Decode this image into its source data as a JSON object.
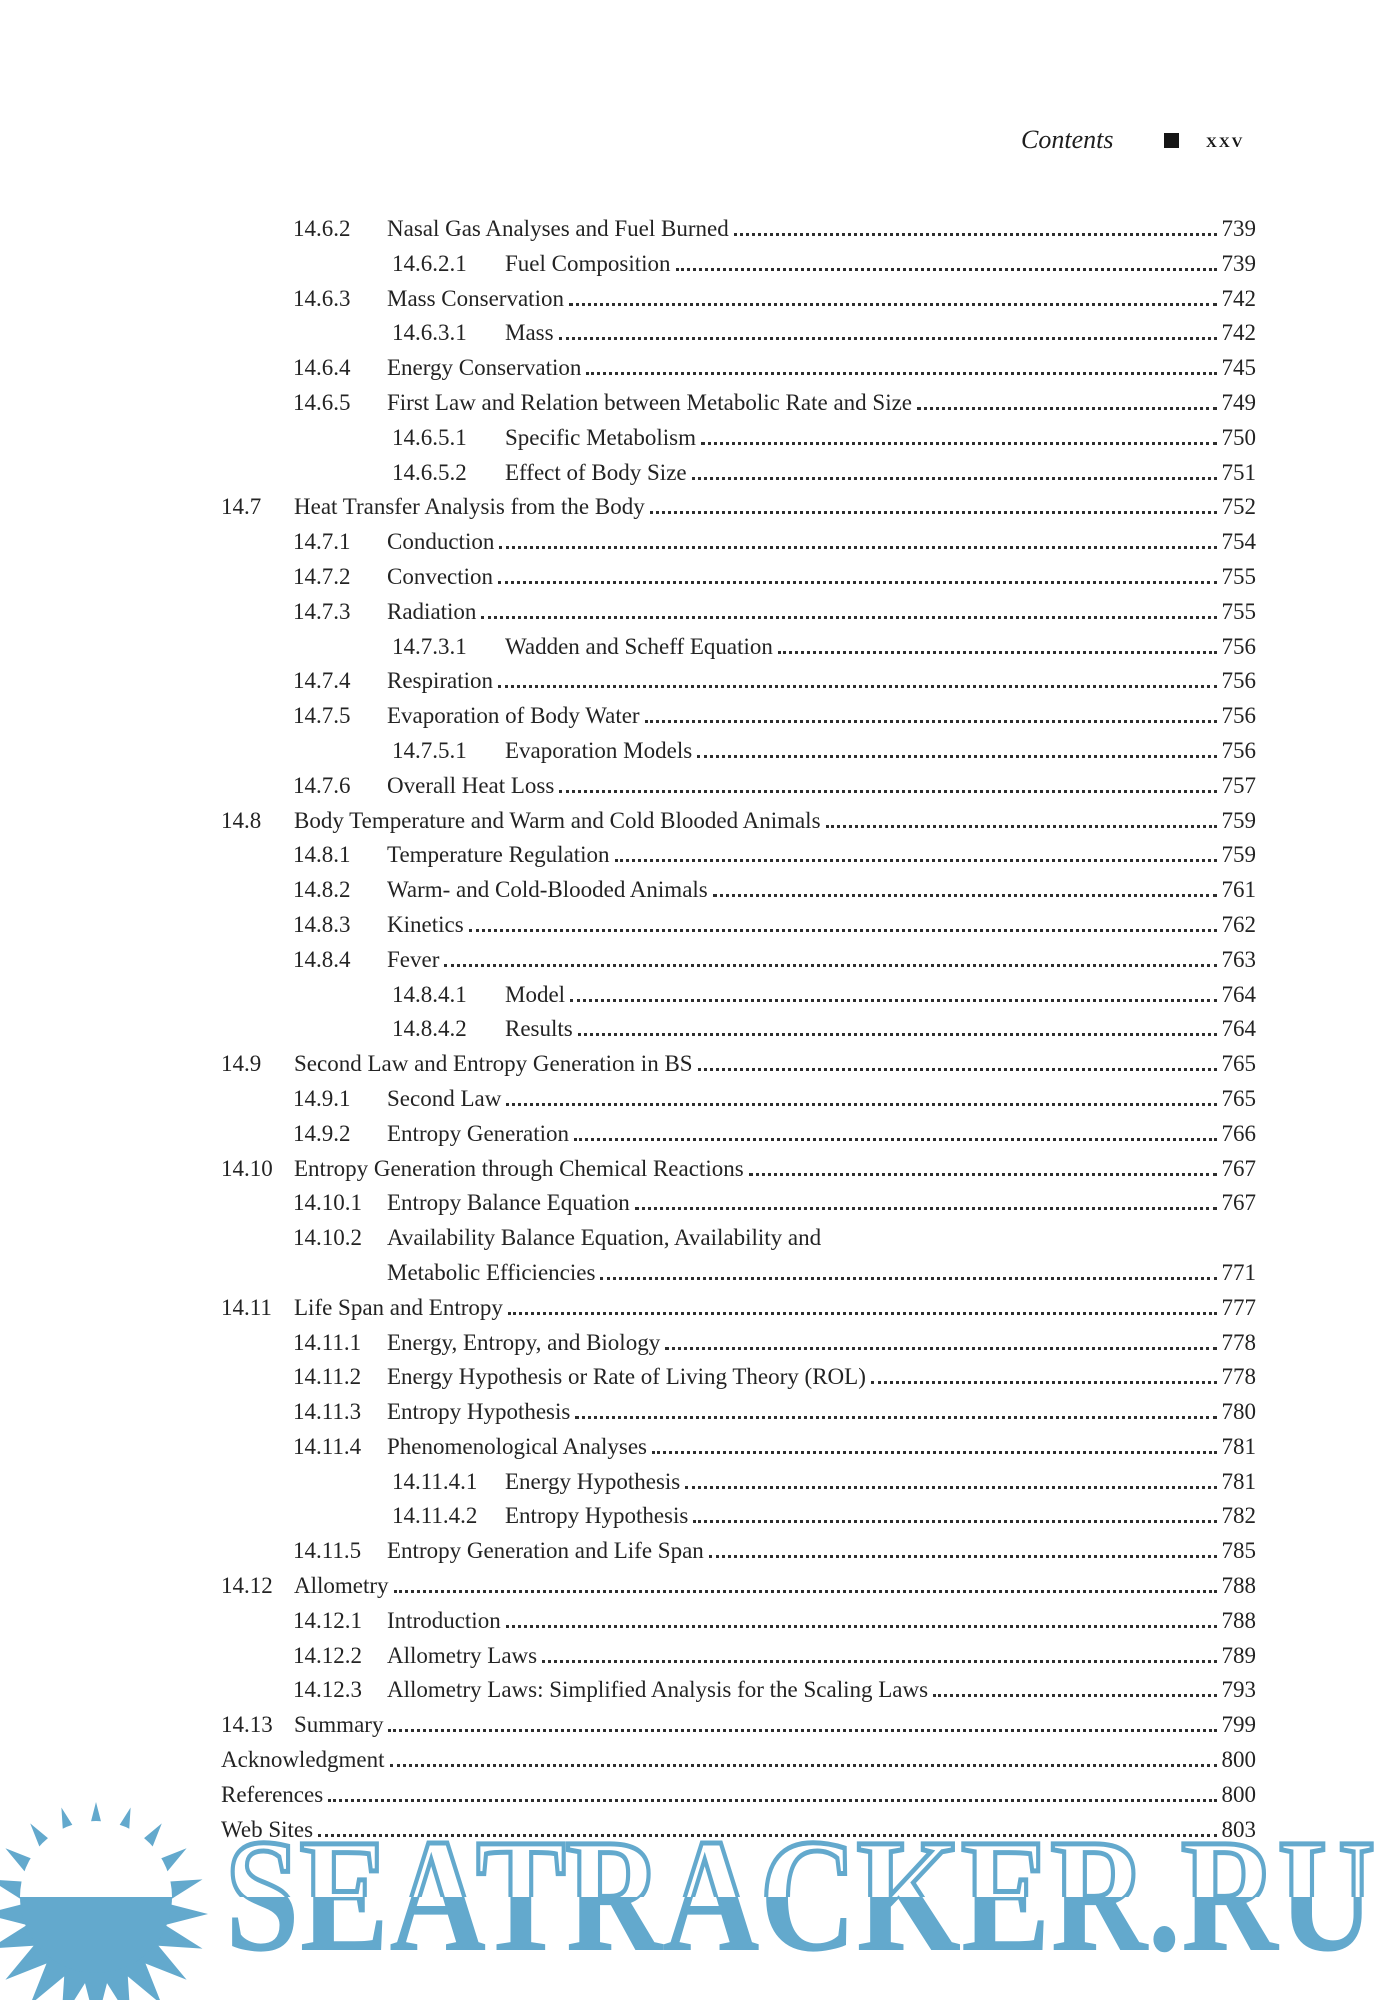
{
  "header": {
    "title": "Contents",
    "separator_icon": "square-bullet",
    "page_label": "xxv"
  },
  "toc": {
    "entries": [
      {
        "level": 2,
        "num": "14.6.2",
        "title": "Nasal Gas Analyses and Fuel Burned",
        "page": "739"
      },
      {
        "level": 3,
        "num": "14.6.2.1",
        "title": "Fuel Composition",
        "page": "739"
      },
      {
        "level": 2,
        "num": "14.6.3",
        "title": "Mass Conservation",
        "page": "742"
      },
      {
        "level": 3,
        "num": "14.6.3.1",
        "title": "Mass",
        "page": "742"
      },
      {
        "level": 2,
        "num": "14.6.4",
        "title": "Energy Conservation",
        "page": "745"
      },
      {
        "level": 2,
        "num": "14.6.5",
        "title": "First Law and Relation between Metabolic Rate and Size",
        "page": "749"
      },
      {
        "level": 3,
        "num": "14.6.5.1",
        "title": "Specific Metabolism",
        "page": "750"
      },
      {
        "level": 3,
        "num": "14.6.5.2",
        "title": "Effect of Body Size",
        "page": "751"
      },
      {
        "level": 1,
        "num": "14.7",
        "title": "Heat Transfer Analysis from the Body",
        "page": "752"
      },
      {
        "level": 2,
        "num": "14.7.1",
        "title": "Conduction",
        "page": "754"
      },
      {
        "level": 2,
        "num": "14.7.2",
        "title": "Convection",
        "page": "755"
      },
      {
        "level": 2,
        "num": "14.7.3",
        "title": "Radiation",
        "page": "755"
      },
      {
        "level": 3,
        "num": "14.7.3.1",
        "title": "Wadden and Scheff Equation",
        "page": "756"
      },
      {
        "level": 2,
        "num": "14.7.4",
        "title": "Respiration",
        "page": "756"
      },
      {
        "level": 2,
        "num": "14.7.5",
        "title": "Evaporation of Body Water",
        "page": "756"
      },
      {
        "level": 3,
        "num": "14.7.5.1",
        "title": "Evaporation Models",
        "page": "756"
      },
      {
        "level": 2,
        "num": "14.7.6",
        "title": "Overall Heat Loss",
        "page": "757"
      },
      {
        "level": 1,
        "num": "14.8",
        "title": "Body Temperature and Warm and Cold Blooded Animals",
        "page": "759"
      },
      {
        "level": 2,
        "num": "14.8.1",
        "title": "Temperature Regulation",
        "page": "759"
      },
      {
        "level": 2,
        "num": "14.8.2",
        "title": "Warm- and Cold-Blooded Animals",
        "page": "761"
      },
      {
        "level": 2,
        "num": "14.8.3",
        "title": "Kinetics",
        "page": "762"
      },
      {
        "level": 2,
        "num": "14.8.4",
        "title": "Fever",
        "page": "763"
      },
      {
        "level": 3,
        "num": "14.8.4.1",
        "title": "Model",
        "page": "764"
      },
      {
        "level": 3,
        "num": "14.8.4.2",
        "title": "Results",
        "page": "764"
      },
      {
        "level": 1,
        "num": "14.9",
        "title": "Second Law and Entropy Generation in BS",
        "page": "765"
      },
      {
        "level": 2,
        "num": "14.9.1",
        "title": "Second Law",
        "page": "765"
      },
      {
        "level": 2,
        "num": "14.9.2",
        "title": "Entropy Generation",
        "page": "766"
      },
      {
        "level": 1,
        "num": "14.10",
        "title": "Entropy Generation through Chemical Reactions",
        "page": "767"
      },
      {
        "level": 2,
        "num": "14.10.1",
        "title": "Entropy Balance Equation",
        "page": "767"
      },
      {
        "level": 2,
        "num": "14.10.2",
        "title": "Availability Balance Equation, Availability and",
        "title2": "Metabolic Efficiencies",
        "page": "771"
      },
      {
        "level": 1,
        "num": "14.11",
        "title": "Life Span and Entropy",
        "page": "777"
      },
      {
        "level": 2,
        "num": "14.11.1",
        "title": "Energy, Entropy, and Biology",
        "page": "778"
      },
      {
        "level": 2,
        "num": "14.11.2",
        "title": "Energy Hypothesis or Rate of Living Theory (ROL)",
        "page": "778"
      },
      {
        "level": 2,
        "num": "14.11.3",
        "title": "Entropy Hypothesis",
        "page": "780"
      },
      {
        "level": 2,
        "num": "14.11.4",
        "title": "Phenomenological Analyses",
        "page": "781"
      },
      {
        "level": 3,
        "num": "14.11.4.1",
        "title": "Energy Hypothesis",
        "page": "781"
      },
      {
        "level": 3,
        "num": "14.11.4.2",
        "title": "Entropy Hypothesis",
        "page": "782"
      },
      {
        "level": 2,
        "num": "14.11.5",
        "title": "Entropy Generation and Life Span",
        "page": "785"
      },
      {
        "level": 1,
        "num": "14.12",
        "title": "Allometry",
        "page": "788"
      },
      {
        "level": 2,
        "num": "14.12.1",
        "title": "Introduction",
        "page": "788"
      },
      {
        "level": 2,
        "num": "14.12.2",
        "title": "Allometry Laws",
        "page": "789"
      },
      {
        "level": 2,
        "num": "14.12.3",
        "title": "Allometry Laws: Simplified Analysis for the Scaling Laws",
        "page": "793"
      },
      {
        "level": 1,
        "num": "14.13",
        "title": "Summary",
        "page": "799"
      },
      {
        "level": 1,
        "num": "",
        "title": "Acknowledgment",
        "page": "800"
      },
      {
        "level": 1,
        "num": "",
        "title": "References",
        "page": "800"
      },
      {
        "level": 1,
        "num": "",
        "title": "Web Sites",
        "page": "803"
      }
    ]
  },
  "watermark": {
    "text": "SEATRACKER.RU",
    "icon": "sun-logo",
    "color": "#63a9cd",
    "text_color": "#232323"
  }
}
